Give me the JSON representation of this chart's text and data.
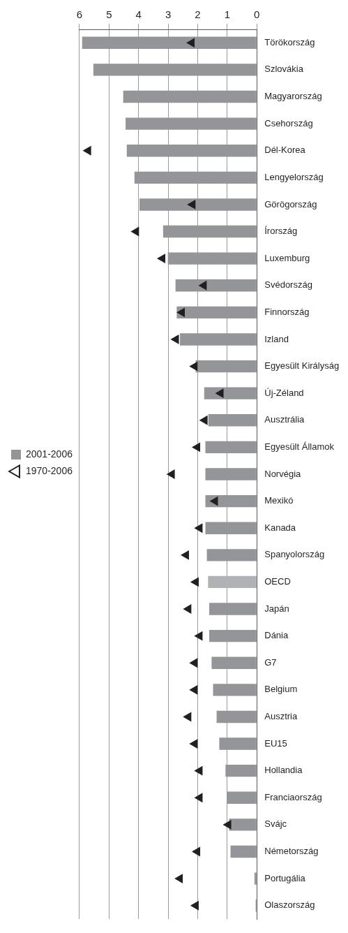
{
  "chart_data": {
    "type": "bar",
    "orientation": "horizontal",
    "categories": [
      "Törökország",
      "Szlovákia",
      "Magyarország",
      "Csehország",
      "Dél-Korea",
      "Lengyelország",
      "Görögország",
      "Írország",
      "Luxemburg",
      "Svédország",
      "Finnország",
      "Izland",
      "Egyesült Királyság",
      "Új-Zéland",
      "Ausztrália",
      "Egyesült Államok",
      "Norvégia",
      "Mexikó",
      "Kanada",
      "Spanyolország",
      "OECD",
      "Japán",
      "Dánia",
      "G7",
      "Belgium",
      "Ausztria",
      "EU15",
      "Hollandia",
      "Franciaország",
      "Svájc",
      "Németország",
      "Portugália",
      "Olaszország"
    ],
    "series": [
      {
        "name": "2001-2006",
        "color": "#939598",
        "colors": [
          "#939598",
          "#939598",
          "#939598",
          "#939598",
          "#939598",
          "#939598",
          "#939598",
          "#939598",
          "#939598",
          "#939598",
          "#939598",
          "#939598",
          "#939598",
          "#939598",
          "#939598",
          "#939598",
          "#939598",
          "#939598",
          "#939598",
          "#939598",
          "#b1b2b5",
          "#939598",
          "#939598",
          "#939598",
          "#939598",
          "#939598",
          "#939598",
          "#939598",
          "#939598",
          "#939598",
          "#939598",
          "#939598",
          "#939598"
        ],
        "values": [
          5.91,
          5.53,
          4.52,
          4.44,
          4.4,
          4.14,
          3.97,
          3.17,
          3.01,
          2.75,
          2.71,
          2.6,
          2.07,
          1.78,
          1.64,
          1.74,
          1.74,
          1.74,
          1.74,
          1.69,
          1.65,
          1.61,
          1.61,
          1.53,
          1.48,
          1.36,
          1.27,
          1.06,
          1.02,
          0.94,
          0.89,
          0.08,
          0.04
        ]
      },
      {
        "name": "1970-2006",
        "type": "scatter",
        "color": "#231f20",
        "marker": "triangle",
        "values": [
          2.2,
          null,
          null,
          null,
          5.7,
          null,
          2.17,
          4.08,
          3.19,
          1.79,
          2.53,
          2.73,
          2.1,
          1.22,
          1.76,
          2.01,
          2.87,
          1.41,
          1.93,
          2.39,
          2.06,
          2.31,
          1.93,
          2.1,
          2.1,
          2.31,
          2.1,
          1.93,
          1.93,
          0.96,
          2.01,
          2.6,
          2.06
        ]
      }
    ],
    "xlim": [
      6,
      0
    ],
    "xticks": [
      6,
      5,
      4,
      3,
      2,
      1,
      0
    ],
    "grid": "x",
    "legend": "left"
  }
}
